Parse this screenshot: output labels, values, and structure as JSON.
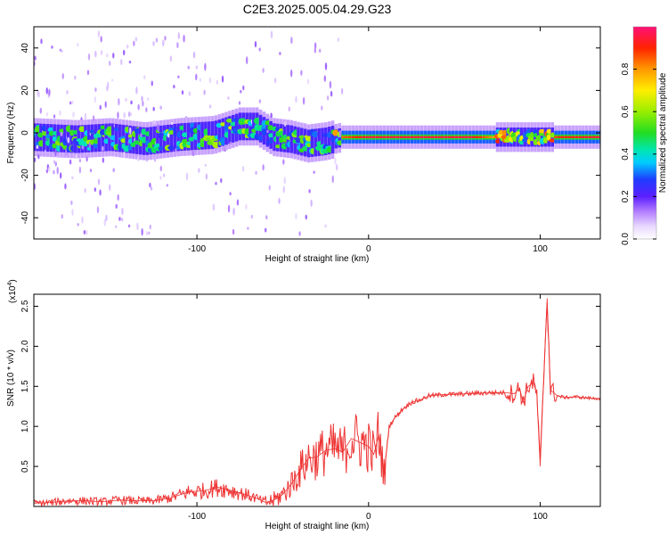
{
  "title": "C2E3.2025.005.04.29.G23",
  "chart_data": [
    {
      "type": "heatmap",
      "xlabel": "Height of straight line (km)",
      "ylabel": "Frequency (Hz)",
      "xlim": [
        -195,
        135
      ],
      "ylim": [
        -50,
        50
      ],
      "xticks": [
        -100,
        0,
        100
      ],
      "yticks": [
        -40,
        -20,
        0,
        20,
        40
      ],
      "colorbar": {
        "label": "Normalized spectral amplitude",
        "range": [
          0,
          1
        ],
        "ticks": [
          0.0,
          0.2,
          0.4,
          0.6,
          0.8
        ]
      },
      "ridge": {
        "x": [
          -195,
          -170,
          -150,
          -130,
          -110,
          -90,
          -75,
          -65,
          -55,
          -45,
          -35,
          -25,
          -20,
          -15,
          0,
          20,
          60,
          80,
          95,
          100,
          110,
          135
        ],
        "freq": [
          -2,
          -3,
          -2,
          -4,
          -2,
          -1,
          3,
          3,
          -2,
          -3,
          -5,
          -4,
          -3,
          -2,
          -2,
          -2,
          -2,
          -2,
          -2,
          -2,
          -2,
          -2
        ],
        "amplitude": [
          0.45,
          0.45,
          0.5,
          0.45,
          0.5,
          0.5,
          0.5,
          0.45,
          0.45,
          0.5,
          0.5,
          0.45,
          0.6,
          0.85,
          0.95,
          0.95,
          0.95,
          0.7,
          0.6,
          0.65,
          0.9,
          0.95
        ]
      }
    },
    {
      "type": "line",
      "xlabel": "Height of straight line (km)",
      "ylabel": "SNR (10 * v/v)",
      "yscale_label": "(x10",
      "yscale_exponent": "4",
      "yscale_suffix": ")",
      "xlim": [
        -195,
        135
      ],
      "ylim": [
        0,
        2.65
      ],
      "xticks": [
        -100,
        0,
        100
      ],
      "yticks": [
        0.5,
        1.0,
        1.5,
        2.0,
        2.5
      ],
      "series": [
        {
          "color": "#ee3333",
          "x": [
            -195,
            -185,
            -175,
            -165,
            -155,
            -145,
            -135,
            -125,
            -115,
            -105,
            -95,
            -88,
            -80,
            -72,
            -65,
            -60,
            -55,
            -50,
            -45,
            -40,
            -35,
            -30,
            -25,
            -20,
            -15,
            -10,
            -5,
            0,
            3,
            6,
            9,
            12,
            15,
            20,
            25,
            30,
            35,
            40,
            45,
            50,
            60,
            70,
            75,
            80,
            85,
            88,
            90,
            93,
            96,
            98,
            100,
            102,
            104,
            106,
            108,
            110,
            115,
            120,
            125,
            130,
            135
          ],
          "y": [
            0.04,
            0.05,
            0.07,
            0.07,
            0.06,
            0.08,
            0.07,
            0.07,
            0.11,
            0.18,
            0.2,
            0.24,
            0.2,
            0.15,
            0.1,
            0.05,
            0.08,
            0.15,
            0.28,
            0.45,
            0.6,
            0.62,
            0.7,
            0.72,
            0.68,
            0.85,
            0.8,
            0.75,
            0.65,
            0.9,
            0.4,
            1.0,
            1.1,
            1.22,
            1.3,
            1.33,
            1.38,
            1.39,
            1.4,
            1.4,
            1.41,
            1.42,
            1.42,
            1.42,
            1.41,
            1.48,
            1.3,
            1.5,
            1.55,
            1.4,
            0.5,
            1.6,
            2.6,
            1.45,
            1.42,
            1.38,
            1.36,
            1.37,
            1.36,
            1.35,
            1.35
          ]
        }
      ]
    }
  ]
}
